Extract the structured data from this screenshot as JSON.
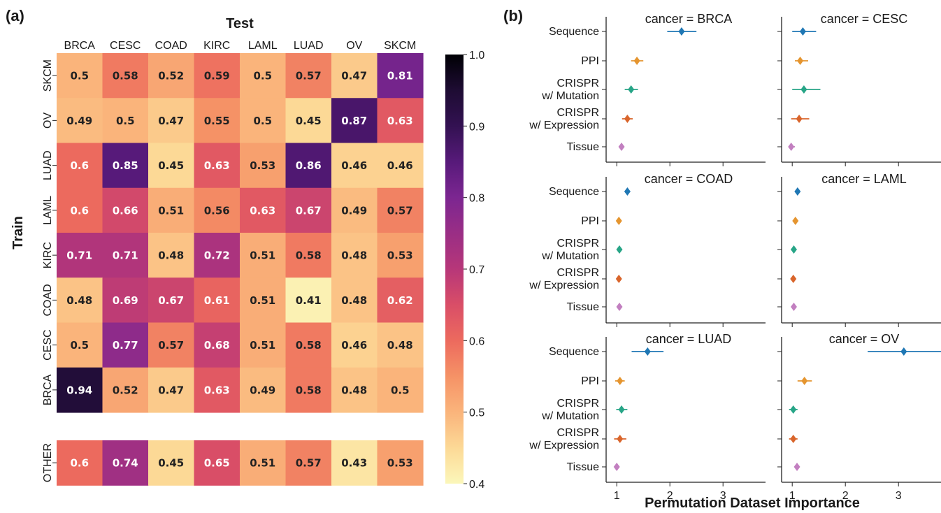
{
  "panel_labels": {
    "a": "(a)",
    "b": "(b)"
  },
  "chart_data": [
    {
      "type": "heatmap",
      "xlabel": "Test",
      "ylabel": "Train",
      "x_categories": [
        "BRCA",
        "CESC",
        "COAD",
        "KIRC",
        "LAML",
        "LUAD",
        "OV",
        "SKCM"
      ],
      "y_categories": [
        "SKCM",
        "OV",
        "LUAD",
        "LAML",
        "KIRC",
        "COAD",
        "CESC",
        "BRCA"
      ],
      "values": [
        [
          "0.5",
          "0.58",
          "0.52",
          "0.59",
          "0.5",
          "0.57",
          "0.47",
          "0.81"
        ],
        [
          "0.49",
          "0.5",
          "0.47",
          "0.55",
          "0.5",
          "0.45",
          "0.87",
          "0.63"
        ],
        [
          "0.6",
          "0.85",
          "0.45",
          "0.63",
          "0.53",
          "0.86",
          "0.46",
          "0.46"
        ],
        [
          "0.6",
          "0.66",
          "0.51",
          "0.56",
          "0.63",
          "0.67",
          "0.49",
          "0.57"
        ],
        [
          "0.71",
          "0.71",
          "0.48",
          "0.72",
          "0.51",
          "0.58",
          "0.48",
          "0.53"
        ],
        [
          "0.48",
          "0.69",
          "0.67",
          "0.61",
          "0.51",
          "0.41",
          "0.48",
          "0.62"
        ],
        [
          "0.5",
          "0.77",
          "0.57",
          "0.68",
          "0.51",
          "0.58",
          "0.46",
          "0.48"
        ],
        [
          "0.94",
          "0.52",
          "0.47",
          "0.63",
          "0.49",
          "0.58",
          "0.48",
          "0.5"
        ]
      ],
      "extra_row": {
        "label": "OTHER",
        "values": [
          "0.6",
          "0.74",
          "0.45",
          "0.65",
          "0.51",
          "0.57",
          "0.43",
          "0.53"
        ]
      },
      "colorbar": {
        "range": [
          0.4,
          1.0
        ],
        "ticks": [
          "0.4",
          "0.5",
          "0.6",
          "0.7",
          "0.8",
          "0.9",
          "1.0"
        ],
        "colormap": "magma_r"
      }
    },
    {
      "type": "scatter",
      "style": "point-with-horizontal-interval",
      "xlabel": "Permutation Dataset Importance",
      "x_ticks": [
        "1",
        "2",
        "3"
      ],
      "xlim": [
        0.8,
        3.8
      ],
      "categories": [
        "Sequence",
        "PPI",
        "CRISPR\nw/ Mutation",
        "CRISPR\nw/ Expression",
        "Tissue"
      ],
      "category_colors": [
        "#1f77b4",
        "#e5952f",
        "#27a587",
        "#d9652b",
        "#c27fc0"
      ],
      "facets": [
        {
          "title": "cancer = BRCA",
          "points": [
            {
              "x": 2.22,
              "lo": 1.95,
              "hi": 2.5
            },
            {
              "x": 1.38,
              "lo": 1.27,
              "hi": 1.5
            },
            {
              "x": 1.27,
              "lo": 1.15,
              "hi": 1.4
            },
            {
              "x": 1.2,
              "lo": 1.1,
              "hi": 1.3
            },
            {
              "x": 1.09,
              "lo": 1.07,
              "hi": 1.11
            }
          ]
        },
        {
          "title": "cancer = CESC",
          "points": [
            {
              "x": 1.2,
              "lo": 1.0,
              "hi": 1.45
            },
            {
              "x": 1.15,
              "lo": 1.05,
              "hi": 1.3
            },
            {
              "x": 1.22,
              "lo": 1.0,
              "hi": 1.53
            },
            {
              "x": 1.13,
              "lo": 0.98,
              "hi": 1.32
            },
            {
              "x": 0.98,
              "lo": 0.93,
              "hi": 1.05
            }
          ]
        },
        {
          "title": "cancer = COAD",
          "points": [
            {
              "x": 1.2,
              "lo": 1.15,
              "hi": 1.25
            },
            {
              "x": 1.04,
              "lo": 1.02,
              "hi": 1.06
            },
            {
              "x": 1.05,
              "lo": 1.03,
              "hi": 1.07
            },
            {
              "x": 1.04,
              "lo": 1.02,
              "hi": 1.06
            },
            {
              "x": 1.05,
              "lo": 1.03,
              "hi": 1.07
            }
          ]
        },
        {
          "title": "cancer = LAML",
          "points": [
            {
              "x": 1.1,
              "lo": 1.07,
              "hi": 1.13
            },
            {
              "x": 1.06,
              "lo": 1.04,
              "hi": 1.08
            },
            {
              "x": 1.03,
              "lo": 1.01,
              "hi": 1.05
            },
            {
              "x": 1.02,
              "lo": 1.0,
              "hi": 1.04
            },
            {
              "x": 1.03,
              "lo": 1.01,
              "hi": 1.05
            }
          ]
        },
        {
          "title": "cancer = LUAD",
          "points": [
            {
              "x": 1.58,
              "lo": 1.28,
              "hi": 1.88
            },
            {
              "x": 1.06,
              "lo": 0.97,
              "hi": 1.15
            },
            {
              "x": 1.09,
              "lo": 0.99,
              "hi": 1.2
            },
            {
              "x": 1.06,
              "lo": 0.95,
              "hi": 1.18
            },
            {
              "x": 1.0,
              "lo": 0.97,
              "hi": 1.03
            }
          ]
        },
        {
          "title": "cancer = OV",
          "points": [
            {
              "x": 3.1,
              "lo": 2.42,
              "hi": 3.8
            },
            {
              "x": 1.23,
              "lo": 1.1,
              "hi": 1.37
            },
            {
              "x": 1.02,
              "lo": 0.94,
              "hi": 1.1
            },
            {
              "x": 1.02,
              "lo": 0.94,
              "hi": 1.1
            },
            {
              "x": 1.09,
              "lo": 1.04,
              "hi": 1.14
            }
          ]
        }
      ]
    }
  ]
}
